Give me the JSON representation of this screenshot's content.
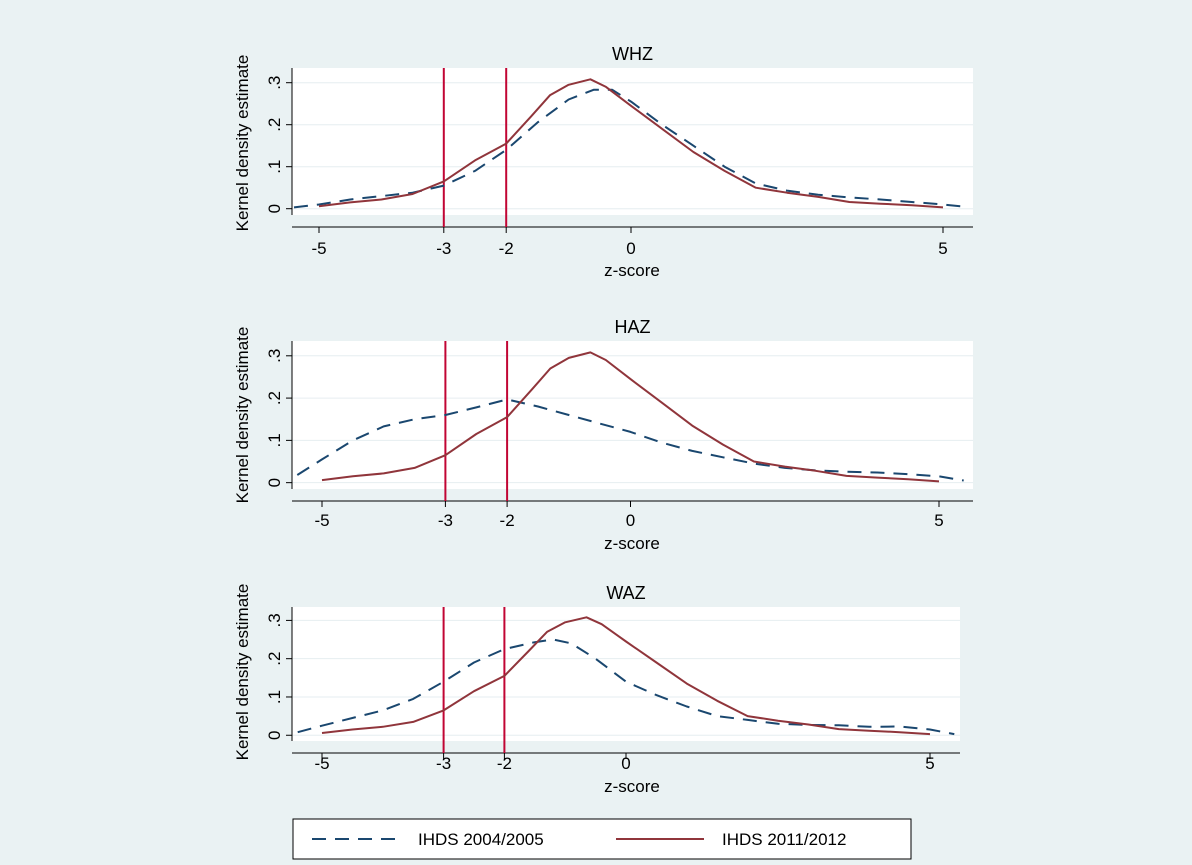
{
  "colors": {
    "background": "#eaf2f3",
    "plot_background": "#ffffff",
    "gridline": "#e6eef0",
    "series_2004": "#1a476f",
    "series_2011": "#90353b",
    "reference_line": "#c10534"
  },
  "legend": {
    "placement": "bottom",
    "items": [
      {
        "label": "IHDS 2004/2005",
        "style": "dashed",
        "color": "#1a476f"
      },
      {
        "label": "IHDS 2011/2012",
        "style": "solid",
        "color": "#90353b"
      }
    ]
  },
  "chart_data": [
    {
      "type": "line",
      "title": "WHZ",
      "xlabel": "z-score",
      "ylabel": "Kernel density estimate",
      "xticks": [
        "-5",
        "-3",
        "-2",
        "0",
        "5"
      ],
      "xtick_values": [
        -5,
        -3,
        -2,
        0,
        5
      ],
      "yticks": [
        "0",
        ".1",
        ".2",
        ".3"
      ],
      "ytick_values": [
        0,
        0.1,
        0.2,
        0.3
      ],
      "xlim": [
        -5.6,
        5.6
      ],
      "ylim": [
        -0.015,
        0.335
      ],
      "grid": true,
      "reference_lines_x": [
        -3,
        -2
      ],
      "series": [
        {
          "name": "IHDS 2004/2005",
          "style": "dashed",
          "points": [
            [
              -5.4,
              0.003
            ],
            [
              -5.0,
              0.01
            ],
            [
              -4.5,
              0.022
            ],
            [
              -4.0,
              0.03
            ],
            [
              -3.5,
              0.038
            ],
            [
              -3.0,
              0.055
            ],
            [
              -2.5,
              0.09
            ],
            [
              -2.0,
              0.14
            ],
            [
              -1.5,
              0.205
            ],
            [
              -1.0,
              0.26
            ],
            [
              -0.6,
              0.283
            ],
            [
              -0.3,
              0.283
            ],
            [
              0.0,
              0.255
            ],
            [
              0.5,
              0.2
            ],
            [
              1.0,
              0.15
            ],
            [
              1.5,
              0.1
            ],
            [
              2.0,
              0.06
            ],
            [
              2.5,
              0.043
            ],
            [
              3.0,
              0.033
            ],
            [
              3.5,
              0.027
            ],
            [
              4.0,
              0.022
            ],
            [
              4.5,
              0.016
            ],
            [
              5.0,
              0.01
            ],
            [
              5.4,
              0.004
            ]
          ]
        },
        {
          "name": "IHDS 2011/2012",
          "style": "solid",
          "points": [
            [
              -5.0,
              0.006
            ],
            [
              -4.5,
              0.015
            ],
            [
              -4.0,
              0.022
            ],
            [
              -3.5,
              0.035
            ],
            [
              -3.0,
              0.065
            ],
            [
              -2.5,
              0.115
            ],
            [
              -2.0,
              0.155
            ],
            [
              -1.6,
              0.22
            ],
            [
              -1.3,
              0.27
            ],
            [
              -1.0,
              0.295
            ],
            [
              -0.65,
              0.308
            ],
            [
              -0.4,
              0.29
            ],
            [
              0.0,
              0.245
            ],
            [
              0.5,
              0.19
            ],
            [
              1.0,
              0.135
            ],
            [
              1.5,
              0.09
            ],
            [
              2.0,
              0.05
            ],
            [
              2.5,
              0.038
            ],
            [
              3.0,
              0.028
            ],
            [
              3.5,
              0.016
            ],
            [
              4.0,
              0.012
            ],
            [
              4.5,
              0.008
            ],
            [
              5.0,
              0.003
            ]
          ]
        }
      ]
    },
    {
      "type": "line",
      "title": "HAZ",
      "xlabel": "z-score",
      "ylabel": "Kernel density estimate",
      "xticks": [
        "-5",
        "-3",
        "-2",
        "0",
        "5"
      ],
      "xtick_values": [
        -5,
        -3,
        -2,
        0,
        5
      ],
      "yticks": [
        "0",
        ".1",
        ".2",
        ".3"
      ],
      "ytick_values": [
        0,
        0.1,
        0.2,
        0.3
      ],
      "xlim": [
        -5.6,
        5.6
      ],
      "ylim": [
        -0.015,
        0.335
      ],
      "grid": true,
      "reference_lines_x": [
        -3,
        -2
      ],
      "series": [
        {
          "name": "IHDS 2004/2005",
          "style": "dashed",
          "points": [
            [
              -5.4,
              0.018
            ],
            [
              -5.0,
              0.055
            ],
            [
              -4.5,
              0.1
            ],
            [
              -4.0,
              0.133
            ],
            [
              -3.5,
              0.15
            ],
            [
              -3.0,
              0.16
            ],
            [
              -2.5,
              0.178
            ],
            [
              -2.0,
              0.197
            ],
            [
              -1.5,
              0.18
            ],
            [
              -1.0,
              0.16
            ],
            [
              -0.5,
              0.14
            ],
            [
              0.0,
              0.12
            ],
            [
              0.5,
              0.095
            ],
            [
              1.0,
              0.075
            ],
            [
              1.5,
              0.06
            ],
            [
              2.0,
              0.045
            ],
            [
              2.5,
              0.035
            ],
            [
              3.0,
              0.029
            ],
            [
              3.5,
              0.026
            ],
            [
              4.0,
              0.024
            ],
            [
              4.5,
              0.02
            ],
            [
              5.0,
              0.015
            ],
            [
              5.4,
              0.005
            ]
          ]
        },
        {
          "name": "IHDS 2011/2012",
          "style": "solid",
          "points": [
            [
              -5.0,
              0.006
            ],
            [
              -4.5,
              0.015
            ],
            [
              -4.0,
              0.022
            ],
            [
              -3.5,
              0.035
            ],
            [
              -3.0,
              0.065
            ],
            [
              -2.5,
              0.115
            ],
            [
              -2.0,
              0.155
            ],
            [
              -1.6,
              0.22
            ],
            [
              -1.3,
              0.27
            ],
            [
              -1.0,
              0.295
            ],
            [
              -0.65,
              0.308
            ],
            [
              -0.4,
              0.29
            ],
            [
              0.0,
              0.245
            ],
            [
              0.5,
              0.19
            ],
            [
              1.0,
              0.135
            ],
            [
              1.5,
              0.09
            ],
            [
              2.0,
              0.05
            ],
            [
              2.5,
              0.038
            ],
            [
              3.0,
              0.028
            ],
            [
              3.5,
              0.016
            ],
            [
              4.0,
              0.012
            ],
            [
              4.5,
              0.008
            ],
            [
              5.0,
              0.003
            ]
          ]
        }
      ]
    },
    {
      "type": "line",
      "title": "WAZ",
      "xlabel": "z-score",
      "ylabel": "Kernel density estimate",
      "xticks": [
        "-5",
        "-3",
        "-2",
        "0",
        "5"
      ],
      "xtick_values": [
        -5,
        -3,
        -2,
        0,
        5
      ],
      "yticks": [
        "0",
        ".1",
        ".2",
        ".3"
      ],
      "ytick_values": [
        0,
        0.1,
        0.2,
        0.3
      ],
      "xlim": [
        -5.6,
        5.6
      ],
      "ylim": [
        -0.015,
        0.335
      ],
      "grid": true,
      "reference_lines_x": [
        -3,
        -2
      ],
      "series": [
        {
          "name": "IHDS 2004/2005",
          "style": "dashed",
          "points": [
            [
              -5.4,
              0.008
            ],
            [
              -5.0,
              0.025
            ],
            [
              -4.5,
              0.045
            ],
            [
              -4.0,
              0.065
            ],
            [
              -3.5,
              0.095
            ],
            [
              -3.0,
              0.14
            ],
            [
              -2.5,
              0.19
            ],
            [
              -2.0,
              0.225
            ],
            [
              -1.5,
              0.243
            ],
            [
              -1.2,
              0.25
            ],
            [
              -0.9,
              0.24
            ],
            [
              -0.5,
              0.2
            ],
            [
              0.0,
              0.14
            ],
            [
              0.5,
              0.105
            ],
            [
              1.0,
              0.075
            ],
            [
              1.5,
              0.05
            ],
            [
              2.0,
              0.04
            ],
            [
              2.5,
              0.03
            ],
            [
              3.0,
              0.027
            ],
            [
              3.5,
              0.026
            ],
            [
              4.0,
              0.022
            ],
            [
              4.5,
              0.023
            ],
            [
              5.0,
              0.015
            ],
            [
              5.4,
              0.003
            ]
          ]
        },
        {
          "name": "IHDS 2011/2012",
          "style": "solid",
          "points": [
            [
              -5.0,
              0.006
            ],
            [
              -4.5,
              0.015
            ],
            [
              -4.0,
              0.022
            ],
            [
              -3.5,
              0.035
            ],
            [
              -3.0,
              0.065
            ],
            [
              -2.5,
              0.115
            ],
            [
              -2.0,
              0.155
            ],
            [
              -1.6,
              0.22
            ],
            [
              -1.3,
              0.27
            ],
            [
              -1.0,
              0.295
            ],
            [
              -0.65,
              0.308
            ],
            [
              -0.4,
              0.29
            ],
            [
              0.0,
              0.245
            ],
            [
              0.5,
              0.19
            ],
            [
              1.0,
              0.135
            ],
            [
              1.5,
              0.09
            ],
            [
              2.0,
              0.05
            ],
            [
              2.5,
              0.038
            ],
            [
              3.0,
              0.028
            ],
            [
              3.5,
              0.016
            ],
            [
              4.0,
              0.012
            ],
            [
              4.5,
              0.008
            ],
            [
              5.0,
              0.003
            ]
          ]
        }
      ]
    }
  ]
}
